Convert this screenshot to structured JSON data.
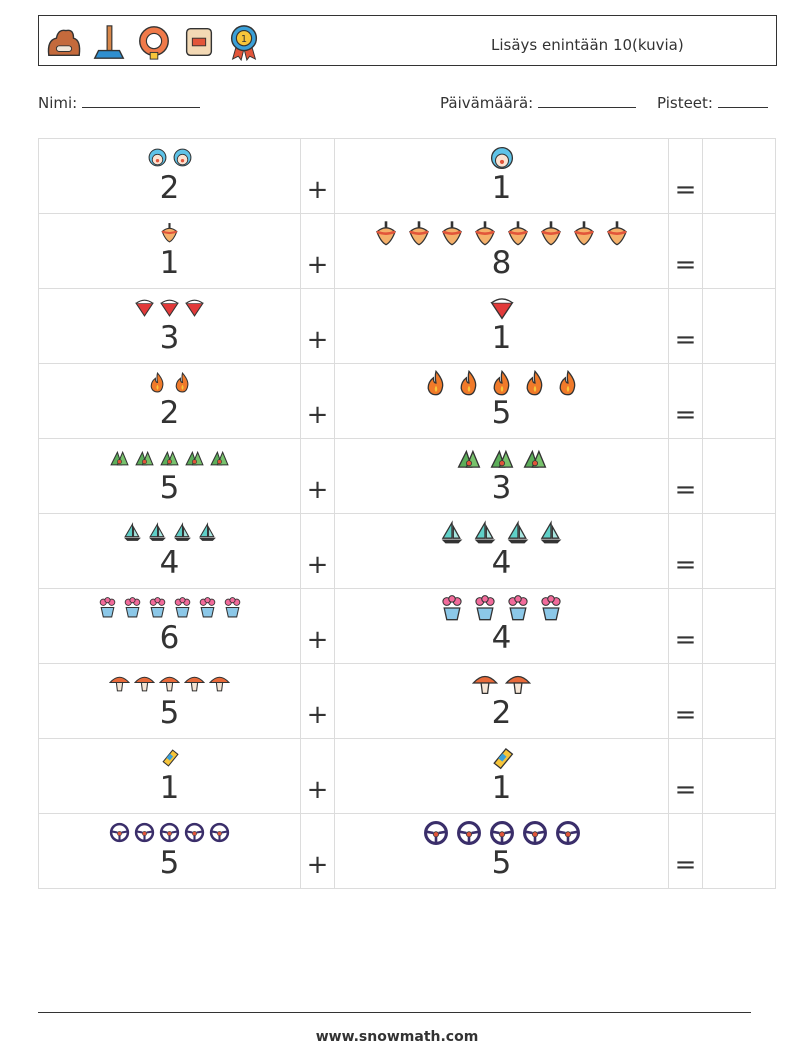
{
  "header": {
    "title": "Lisäys enintään 10(kuvia)",
    "icons": [
      "dog-bed-icon",
      "plunger-icon",
      "life-ring-icon",
      "film-roll-icon",
      "medal-ribbon-icon"
    ]
  },
  "info": {
    "name_label": "Nimi:",
    "date_label": "Päivämäärä:",
    "score_label": "Pisteet:"
  },
  "symbols": {
    "plus": "+",
    "equals": "="
  },
  "problems": [
    {
      "a": 2,
      "b": 1,
      "icon": "clown-icon"
    },
    {
      "a": 1,
      "b": 8,
      "icon": "spinning-top-icon"
    },
    {
      "a": 3,
      "b": 1,
      "icon": "watermelon-slice-icon"
    },
    {
      "a": 2,
      "b": 5,
      "icon": "fire-icon"
    },
    {
      "a": 5,
      "b": 3,
      "icon": "holly-icon"
    },
    {
      "a": 4,
      "b": 4,
      "icon": "sailboat-icon"
    },
    {
      "a": 6,
      "b": 4,
      "icon": "flower-pot-icon"
    },
    {
      "a": 5,
      "b": 2,
      "icon": "mushroom-icon"
    },
    {
      "a": 1,
      "b": 1,
      "icon": "ticket-icon"
    },
    {
      "a": 5,
      "b": 5,
      "icon": "steering-wheel-icon"
    }
  ],
  "footer": {
    "site": "www.snowmath.com"
  }
}
